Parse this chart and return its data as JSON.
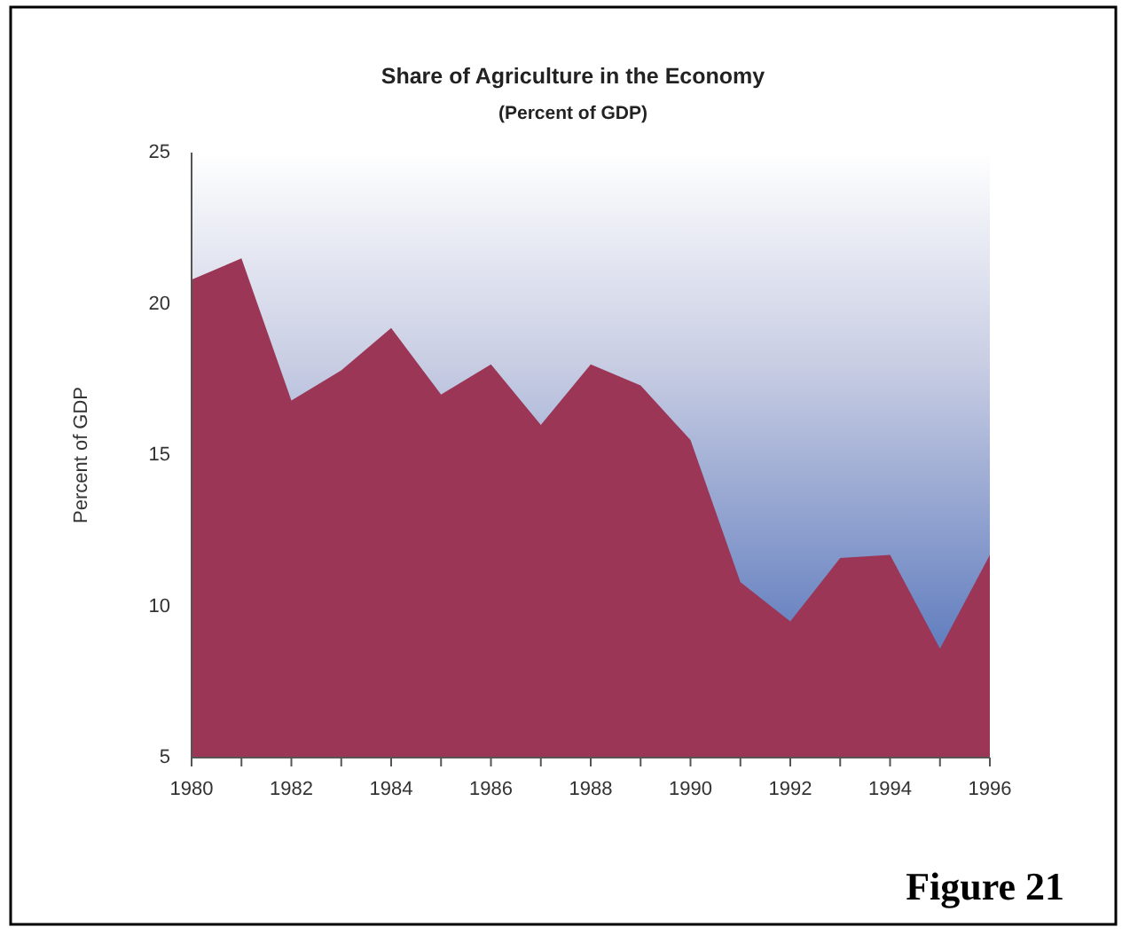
{
  "chart_data": {
    "type": "area",
    "title": "Share of Agriculture in the Economy",
    "subtitle": "(Percent of GDP)",
    "ylabel": "Percent of GDP",
    "x": [
      1980,
      1981,
      1982,
      1983,
      1984,
      1985,
      1986,
      1987,
      1988,
      1989,
      1990,
      1991,
      1992,
      1993,
      1994,
      1995,
      1996
    ],
    "series": [
      {
        "color": "#9b3656",
        "values": [
          20.8,
          21.5,
          16.8,
          17.8,
          19.2,
          17.0,
          18.0,
          16.0,
          18.0,
          17.3,
          15.5,
          10.8,
          9.5,
          11.6,
          11.7,
          8.6,
          11.7
        ]
      }
    ],
    "xlim": [
      1980,
      1996
    ],
    "xticks": [
      1980,
      1982,
      1984,
      1986,
      1988,
      1990,
      1992,
      1994,
      1996
    ],
    "ylim": [
      5,
      25
    ],
    "yticks": [
      5,
      10,
      15,
      20,
      25
    ],
    "annotations": [
      "Figure 21"
    ]
  }
}
